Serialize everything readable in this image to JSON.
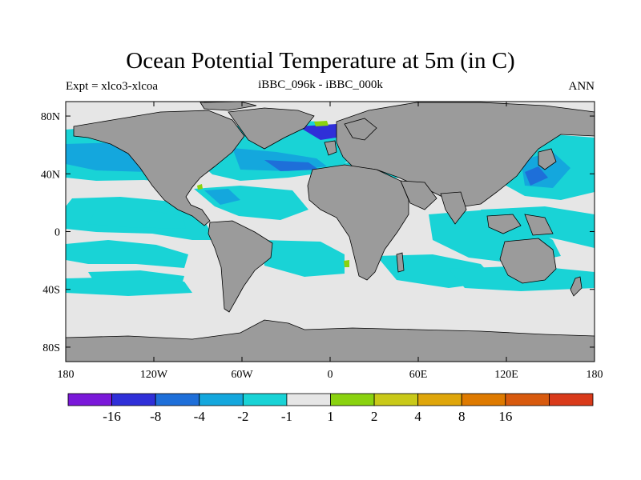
{
  "chart_data": {
    "type": "heatmap",
    "title": "Ocean Potential Temperature at 5m (in C)",
    "subtitle_left": "Expt = xlco3-xlcoa",
    "subtitle_center": "iBBC_096k - iBBC_000k",
    "subtitle_right": "ANN",
    "x_range": [
      -180,
      180
    ],
    "y_range": [
      -90,
      90
    ],
    "x_ticks": [
      {
        "value": -180,
        "label": "180"
      },
      {
        "value": -120,
        "label": "120W"
      },
      {
        "value": -60,
        "label": "60W"
      },
      {
        "value": 0,
        "label": "0"
      },
      {
        "value": 60,
        "label": "60E"
      },
      {
        "value": 120,
        "label": "120E"
      },
      {
        "value": 180,
        "label": "180"
      }
    ],
    "y_ticks": [
      {
        "value": 80,
        "label": "80N"
      },
      {
        "value": 40,
        "label": "40N"
      },
      {
        "value": 0,
        "label": "0"
      },
      {
        "value": -40,
        "label": "40S"
      },
      {
        "value": -80,
        "label": "80S"
      }
    ],
    "colorbar": {
      "colors": [
        "#7a18d9",
        "#2f2fd8",
        "#1e6fd9",
        "#14a7dd",
        "#19d3d6",
        "#e6e6e6",
        "#8ad20f",
        "#c9c918",
        "#dfa60a",
        "#de7a00",
        "#d85a0e",
        "#d93a1a"
      ],
      "labels": [
        "-16",
        "-8",
        "-4",
        "-2",
        "-1",
        "1",
        "2",
        "4",
        "8",
        "16"
      ]
    },
    "land_color": "#9b9b9b",
    "ocean_background_color": "#e6e6e6"
  }
}
